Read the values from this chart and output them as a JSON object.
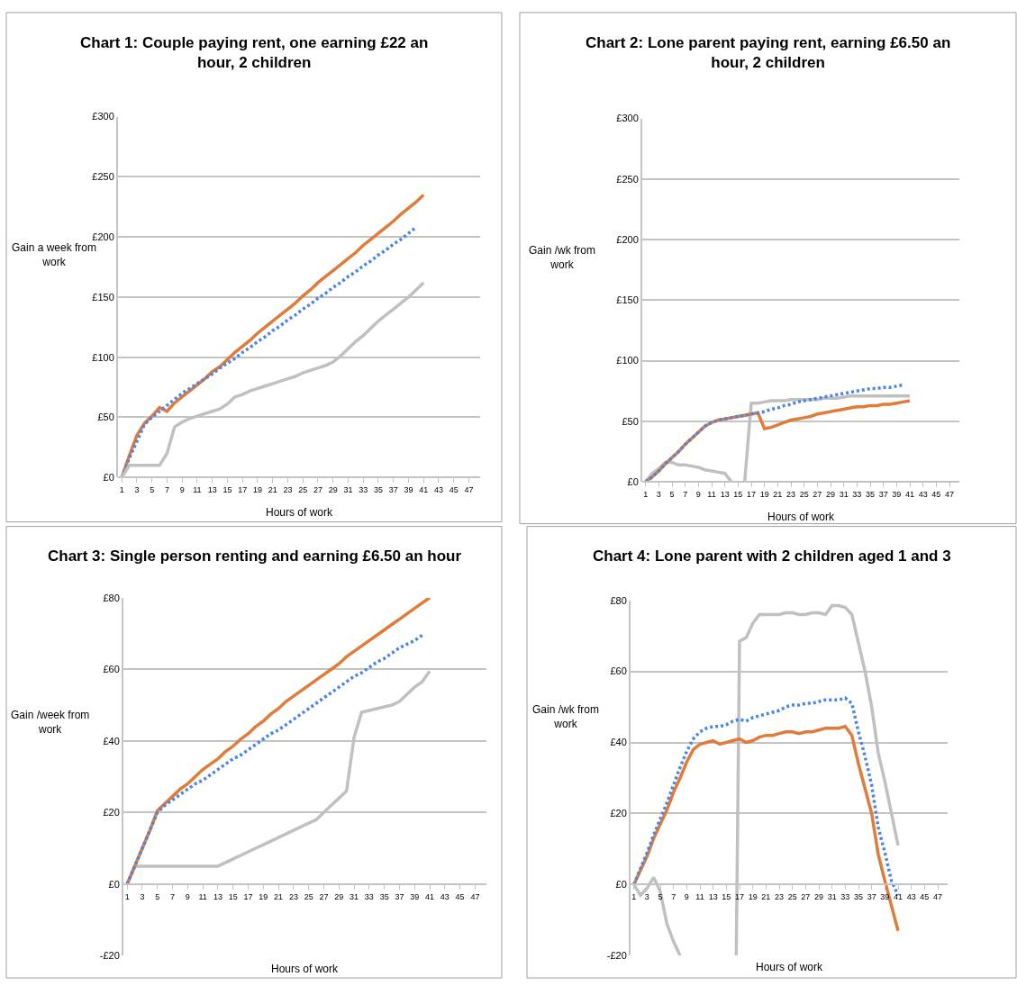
{
  "chart_data": [
    {
      "type": "line",
      "title": "Chart 1: Couple paying rent, one earning £22 an\nhour, 2 children",
      "xlabel": "Hours of work",
      "ylabel": "Gain a week from\nwork",
      "grid": "y",
      "x": [
        1,
        2,
        3,
        4,
        5,
        6,
        7,
        8,
        9,
        10,
        11,
        12,
        13,
        14,
        15,
        16,
        17,
        18,
        19,
        20,
        21,
        22,
        23,
        24,
        25,
        26,
        27,
        28,
        29,
        30,
        31,
        32,
        33,
        34,
        35,
        36,
        37,
        38,
        39,
        40,
        41
      ],
      "xlim": [
        0.5,
        48.5
      ],
      "xticks": [
        1,
        3,
        5,
        7,
        9,
        11,
        13,
        15,
        17,
        19,
        21,
        23,
        25,
        27,
        29,
        31,
        33,
        35,
        37,
        39,
        41,
        43,
        45,
        47
      ],
      "ylim": [
        0,
        300
      ],
      "yticks": [
        {
          "value": 0,
          "label": "£0"
        },
        {
          "value": 50,
          "label": "£50"
        },
        {
          "value": 100,
          "label": "£100"
        },
        {
          "value": 150,
          "label": "£150"
        },
        {
          "value": 200,
          "label": "£200"
        },
        {
          "value": 250,
          "label": "£250"
        },
        {
          "value": 300,
          "label": "£300"
        }
      ],
      "series": [
        {
          "color": "#e07b39",
          "line_style": "solid",
          "values": [
            0,
            18,
            35,
            45,
            51,
            58,
            55,
            62,
            67,
            72,
            77,
            82,
            88,
            92,
            98,
            104,
            109,
            114,
            120,
            125,
            130,
            135,
            140,
            145,
            151,
            156,
            162,
            167,
            172,
            177,
            182,
            187,
            193,
            198,
            203,
            208,
            213,
            219,
            224,
            229,
            235
          ]
        },
        {
          "color": "#4a86e8",
          "line_style": "dotted",
          "values": [
            0,
            16,
            30,
            44,
            50,
            55,
            60,
            65,
            70,
            74,
            78,
            82,
            86,
            91,
            95,
            99,
            104,
            108,
            113,
            117,
            122,
            126,
            131,
            135,
            140,
            144,
            149,
            153,
            158,
            162,
            167,
            171,
            176,
            180,
            185,
            189,
            194,
            198,
            203,
            208,
            null
          ]
        },
        {
          "color": "#c0c0c0",
          "line_style": "solid",
          "values": [
            0,
            10,
            10,
            10,
            10,
            10,
            20,
            42,
            46,
            49,
            51,
            53,
            55,
            57,
            61,
            67,
            69,
            72,
            74,
            76,
            78,
            80,
            82,
            84,
            87,
            89,
            91,
            93,
            96,
            101,
            107,
            113,
            118,
            124,
            130,
            135,
            140,
            145,
            150,
            156,
            162
          ]
        }
      ]
    },
    {
      "type": "line",
      "title": "Chart 2: Lone parent paying rent, earning £6.50 an\nhour, 2 children",
      "xlabel": "Hours of work",
      "ylabel": "Gain /wk from\nwork",
      "grid": "y",
      "x": [
        1,
        2,
        3,
        4,
        5,
        6,
        7,
        8,
        9,
        10,
        11,
        12,
        13,
        14,
        15,
        16,
        17,
        18,
        19,
        20,
        21,
        22,
        23,
        24,
        25,
        26,
        27,
        28,
        29,
        30,
        31,
        32,
        33,
        34,
        35,
        36,
        37,
        38,
        39,
        40,
        41
      ],
      "xlim": [
        0.5,
        48.5
      ],
      "xticks": [
        1,
        3,
        5,
        7,
        9,
        11,
        13,
        15,
        17,
        19,
        21,
        23,
        25,
        27,
        29,
        31,
        33,
        35,
        37,
        39,
        41,
        43,
        45,
        47
      ],
      "ylim": [
        0,
        300
      ],
      "yticks": [
        {
          "value": 0,
          "label": "£0"
        },
        {
          "value": 50,
          "label": "£50"
        },
        {
          "value": 100,
          "label": "£100"
        },
        {
          "value": 150,
          "label": "£150"
        },
        {
          "value": 200,
          "label": "£200"
        },
        {
          "value": 250,
          "label": "£250"
        },
        {
          "value": 300,
          "label": "£300"
        }
      ],
      "series": [
        {
          "color": "#c0c0c0",
          "line_style": "solid",
          "values": [
            0,
            7,
            11,
            16,
            16,
            14,
            14,
            13,
            12,
            10,
            9,
            8,
            7,
            0,
            null,
            0,
            65,
            65,
            66,
            67,
            67,
            67,
            68,
            68,
            68,
            68,
            68,
            69,
            69,
            69,
            70,
            71,
            71,
            71,
            71,
            71,
            71,
            71,
            71,
            71,
            71
          ]
        },
        {
          "color": "#e07b39",
          "line_style": "solid",
          "values": [
            0,
            4,
            9,
            15,
            20,
            25,
            31,
            36,
            41,
            46,
            49,
            51,
            52,
            53,
            54,
            55,
            56,
            57,
            44,
            45,
            47,
            49,
            51,
            52,
            53,
            54,
            56,
            57,
            58,
            59,
            60,
            61,
            62,
            62,
            63,
            63,
            64,
            64,
            65,
            66,
            67
          ]
        },
        {
          "color": "#4a86e8",
          "line_style": "dotted",
          "values": [
            0,
            4,
            9,
            15,
            20,
            25,
            31,
            36,
            41,
            46,
            49,
            51,
            52,
            53,
            54,
            55,
            56,
            57,
            58,
            60,
            61,
            63,
            64,
            66,
            67,
            68,
            69,
            70,
            71,
            72,
            73,
            74,
            75,
            76,
            77,
            77,
            78,
            78,
            79,
            80,
            null
          ]
        }
      ]
    },
    {
      "type": "line",
      "title": "Chart 3: Single person renting and earning £6.50 an hour",
      "xlabel": "Hours of work",
      "ylabel": "Gain /week from\nwork",
      "grid": "y",
      "x": [
        1,
        2,
        3,
        4,
        5,
        6,
        7,
        8,
        9,
        10,
        11,
        12,
        13,
        14,
        15,
        16,
        17,
        18,
        19,
        20,
        21,
        22,
        23,
        24,
        25,
        26,
        27,
        28,
        29,
        30,
        31,
        32,
        33,
        34,
        35,
        36,
        37,
        38,
        39,
        40,
        41
      ],
      "xlim": [
        0.5,
        48.5
      ],
      "xticks": [
        1,
        3,
        5,
        7,
        9,
        11,
        13,
        15,
        17,
        19,
        21,
        23,
        25,
        27,
        29,
        31,
        33,
        35,
        37,
        39,
        41,
        43,
        45,
        47
      ],
      "ylim": [
        -20,
        80
      ],
      "yticks": [
        {
          "value": -20,
          "label": "-£20"
        },
        {
          "value": 0,
          "label": "£0"
        },
        {
          "value": 20,
          "label": "£20"
        },
        {
          "value": 40,
          "label": "£40"
        },
        {
          "value": 60,
          "label": "£60"
        },
        {
          "value": 80,
          "label": "£80"
        }
      ],
      "series": [
        {
          "color": "#c0c0c0",
          "line_style": "solid",
          "values": [
            0,
            5,
            5,
            5,
            5,
            5,
            5,
            5,
            5,
            5,
            5,
            5,
            5,
            6,
            7,
            8,
            9,
            10,
            11,
            12,
            13,
            14,
            15,
            16,
            17,
            18,
            20,
            22,
            24,
            26,
            41,
            48,
            48.5,
            49,
            49.5,
            50,
            51,
            53,
            55,
            56.5,
            59.5
          ]
        },
        {
          "color": "#e07b39",
          "line_style": "solid",
          "values": [
            0,
            5,
            10,
            15,
            20.5,
            22.5,
            24.5,
            26.5,
            28,
            30,
            32,
            33.5,
            35,
            37,
            38.5,
            40.5,
            42,
            44,
            45.5,
            47.5,
            49,
            51,
            52.5,
            54,
            55.5,
            57,
            58.5,
            60,
            61.5,
            63.5,
            65,
            66.5,
            68,
            69.5,
            71,
            72.5,
            74,
            75.5,
            77,
            78.5,
            80
          ]
        },
        {
          "color": "#4a86e8",
          "line_style": "dotted",
          "values": [
            0,
            5,
            10,
            15,
            20,
            22,
            23.5,
            25,
            26.5,
            28,
            29,
            30.5,
            32,
            33.5,
            35,
            36,
            37.5,
            39,
            40.5,
            42,
            43,
            44.5,
            46,
            47.5,
            49,
            50.5,
            52,
            53.5,
            55,
            56.5,
            58,
            59,
            60.5,
            62,
            63,
            64.5,
            66,
            67,
            68,
            69.5,
            null
          ]
        }
      ]
    },
    {
      "type": "line",
      "title": "Chart 4: Lone parent with 2 children aged 1 and 3",
      "xlabel": "Hours of work",
      "ylabel": "Gain /wk from\nwork",
      "grid": "y",
      "x": [
        1,
        2,
        3,
        4,
        5,
        6,
        7,
        8,
        9,
        10,
        11,
        12,
        13,
        14,
        15,
        16,
        17,
        18,
        19,
        20,
        21,
        22,
        23,
        24,
        25,
        26,
        27,
        28,
        29,
        30,
        31,
        32,
        33,
        34,
        35,
        36,
        37,
        38,
        39,
        40,
        41
      ],
      "xlim": [
        0.5,
        48.5
      ],
      "xticks": [
        1,
        3,
        5,
        7,
        9,
        11,
        13,
        15,
        17,
        19,
        21,
        23,
        25,
        27,
        29,
        31,
        33,
        35,
        37,
        39,
        41,
        43,
        45,
        47
      ],
      "ylim": [
        -20,
        80
      ],
      "yticks": [
        {
          "value": -20,
          "label": "-£20"
        },
        {
          "value": 0,
          "label": "£0"
        },
        {
          "value": 20,
          "label": "£20"
        },
        {
          "value": 40,
          "label": "£40"
        },
        {
          "value": 60,
          "label": "£60"
        },
        {
          "value": 80,
          "label": "£80"
        }
      ],
      "series": [
        {
          "color": "#c0c0c0",
          "line_style": "solid",
          "x": [
            1,
            2,
            3,
            4,
            5,
            6,
            7,
            8,
            12,
            16.5,
            17,
            18,
            19,
            20,
            21,
            22,
            23,
            24,
            25,
            26,
            27,
            28,
            29,
            30,
            31,
            32,
            33,
            34,
            35,
            36,
            37,
            38,
            39,
            40,
            41
          ],
          "values": [
            0,
            -3,
            -1,
            2,
            -2,
            -11,
            -16,
            -20,
            null,
            -20,
            68.5,
            69.5,
            73.5,
            76,
            76,
            76,
            76,
            76.5,
            76.5,
            76,
            76,
            76.5,
            76.5,
            76,
            78.5,
            78.5,
            78,
            76,
            68,
            60,
            50,
            37,
            29,
            20,
            11
          ]
        },
        {
          "color": "#e07b39",
          "line_style": "solid",
          "values": [
            0,
            4,
            8,
            13,
            17,
            21,
            26,
            30,
            34.5,
            38,
            39.5,
            40,
            40.5,
            39.5,
            40,
            40.5,
            41,
            40,
            40.5,
            41.5,
            42,
            42,
            42.5,
            43,
            43,
            42.5,
            43,
            43,
            43.5,
            44,
            44,
            44,
            44.5,
            42,
            34,
            27,
            20,
            8.5,
            1,
            -6,
            -13
          ]
        },
        {
          "color": "#4a86e8",
          "line_style": "dotted",
          "values": [
            0,
            4.5,
            9,
            14,
            18.5,
            23,
            28,
            33,
            37.5,
            41,
            43,
            44,
            44.5,
            44.5,
            45,
            46,
            46.5,
            46,
            47,
            47.5,
            48,
            48.5,
            49,
            50,
            50.5,
            50.5,
            51,
            51,
            51.5,
            52,
            52,
            52,
            52.5,
            51,
            43,
            36,
            28,
            16,
            9,
            1,
            -3
          ]
        }
      ]
    }
  ]
}
